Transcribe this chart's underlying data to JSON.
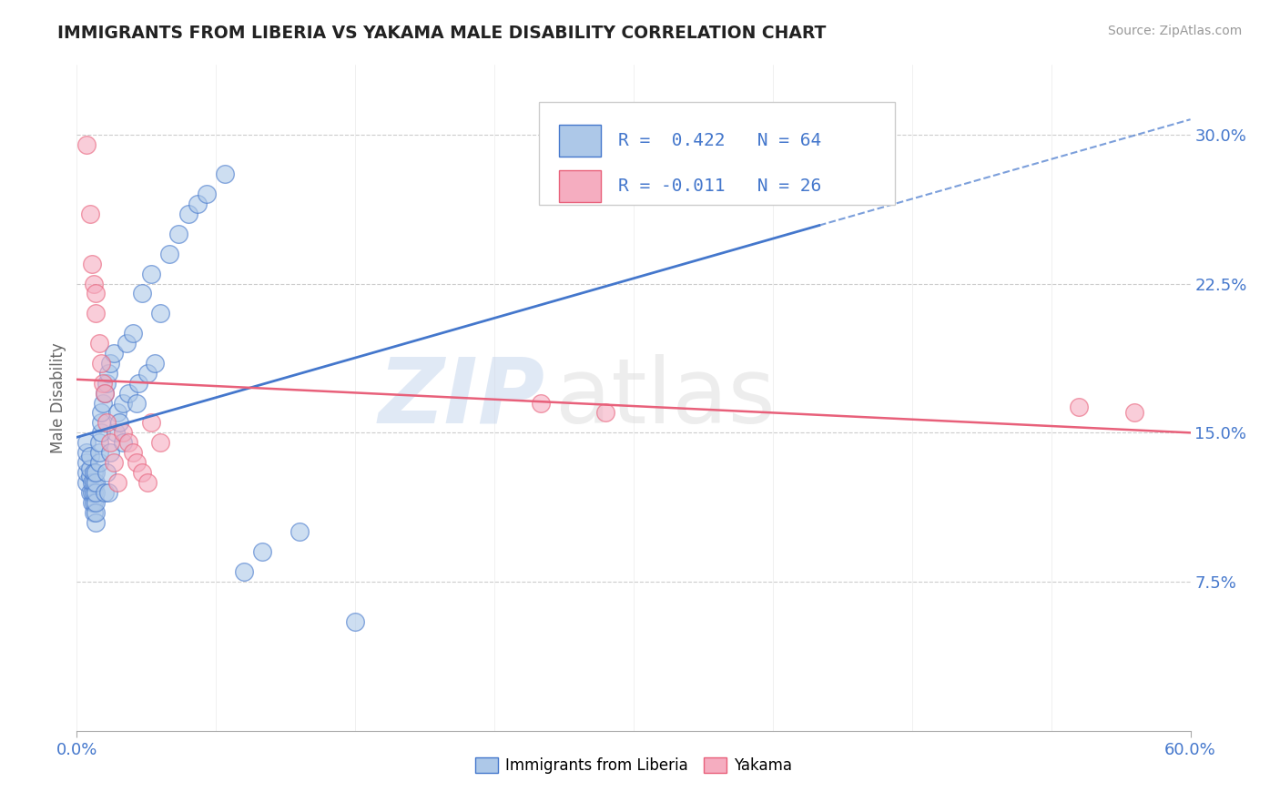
{
  "title": "IMMIGRANTS FROM LIBERIA VS YAKAMA MALE DISABILITY CORRELATION CHART",
  "source": "Source: ZipAtlas.com",
  "ylabel": "Male Disability",
  "yticks": [
    0.075,
    0.15,
    0.225,
    0.3
  ],
  "ytick_labels": [
    "7.5%",
    "15.0%",
    "22.5%",
    "30.0%"
  ],
  "xlim": [
    0.0,
    0.6
  ],
  "ylim": [
    0.0,
    0.335
  ],
  "blue_R": 0.422,
  "blue_N": 64,
  "pink_R": -0.011,
  "pink_N": 26,
  "blue_color": "#adc8e8",
  "pink_color": "#f5adc0",
  "blue_line_color": "#4477cc",
  "pink_line_color": "#e8607a",
  "watermark_text": "ZIP",
  "watermark_text2": "atlas",
  "legend_label_blue": "Immigrants from Liberia",
  "legend_label_pink": "Yakama",
  "background_color": "#ffffff",
  "grid_color": "#cccccc",
  "title_color": "#222222",
  "axis_label_color": "#4477cc",
  "blue_scatter_x": [
    0.005,
    0.005,
    0.005,
    0.005,
    0.005,
    0.007,
    0.007,
    0.007,
    0.007,
    0.008,
    0.008,
    0.008,
    0.009,
    0.009,
    0.009,
    0.009,
    0.009,
    0.01,
    0.01,
    0.01,
    0.01,
    0.01,
    0.01,
    0.012,
    0.012,
    0.012,
    0.013,
    0.013,
    0.013,
    0.014,
    0.015,
    0.015,
    0.016,
    0.016,
    0.017,
    0.017,
    0.018,
    0.018,
    0.02,
    0.021,
    0.022,
    0.023,
    0.025,
    0.025,
    0.027,
    0.028,
    0.03,
    0.032,
    0.033,
    0.035,
    0.038,
    0.04,
    0.042,
    0.045,
    0.05,
    0.055,
    0.06,
    0.065,
    0.07,
    0.08,
    0.09,
    0.1,
    0.12,
    0.15
  ],
  "blue_scatter_y": [
    0.125,
    0.13,
    0.135,
    0.14,
    0.145,
    0.12,
    0.128,
    0.132,
    0.138,
    0.115,
    0.12,
    0.125,
    0.11,
    0.115,
    0.12,
    0.125,
    0.13,
    0.105,
    0.11,
    0.115,
    0.12,
    0.125,
    0.13,
    0.135,
    0.14,
    0.145,
    0.15,
    0.155,
    0.16,
    0.165,
    0.12,
    0.17,
    0.175,
    0.13,
    0.18,
    0.12,
    0.185,
    0.14,
    0.19,
    0.15,
    0.16,
    0.155,
    0.145,
    0.165,
    0.195,
    0.17,
    0.2,
    0.165,
    0.175,
    0.22,
    0.18,
    0.23,
    0.185,
    0.21,
    0.24,
    0.25,
    0.26,
    0.265,
    0.27,
    0.28,
    0.08,
    0.09,
    0.1,
    0.055
  ],
  "pink_scatter_x": [
    0.005,
    0.007,
    0.008,
    0.009,
    0.01,
    0.01,
    0.012,
    0.013,
    0.014,
    0.015,
    0.016,
    0.018,
    0.02,
    0.022,
    0.025,
    0.028,
    0.03,
    0.032,
    0.035,
    0.038,
    0.04,
    0.045,
    0.25,
    0.285,
    0.54,
    0.57
  ],
  "pink_scatter_y": [
    0.295,
    0.26,
    0.235,
    0.225,
    0.22,
    0.21,
    0.195,
    0.185,
    0.175,
    0.17,
    0.155,
    0.145,
    0.135,
    0.125,
    0.15,
    0.145,
    0.14,
    0.135,
    0.13,
    0.125,
    0.155,
    0.145,
    0.165,
    0.16,
    0.163,
    0.16
  ],
  "blue_line_x_start": 0.0,
  "blue_line_x_end": 0.6,
  "pink_line_x_start": 0.0,
  "pink_line_x_end": 0.6
}
